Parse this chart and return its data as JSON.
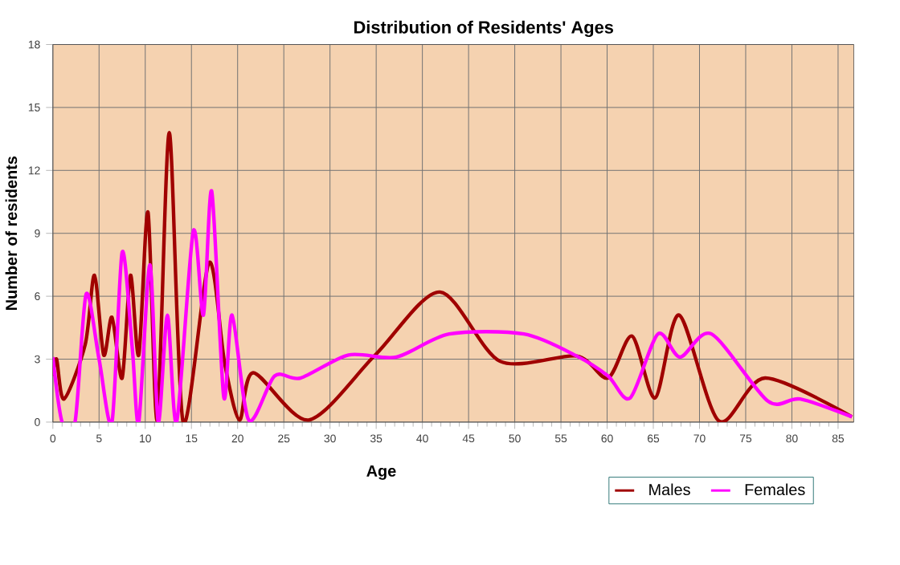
{
  "chart_data": {
    "type": "line",
    "title": "Distribution of Residents' Ages",
    "xlabel": "Age",
    "ylabel": "Number of residents",
    "xlim": [
      0,
      86.7
    ],
    "xticks": [
      0,
      5,
      10,
      15,
      20,
      25,
      30,
      35,
      40,
      45,
      50,
      55,
      60,
      65,
      70,
      75,
      80,
      85
    ],
    "ylim": [
      0,
      18
    ],
    "yticks": [
      0,
      3,
      6,
      9,
      12,
      15,
      18
    ],
    "grid": true,
    "legend": "bottom right",
    "series": [
      {
        "name": "Males",
        "color": "#a00000",
        "x": [
          0,
          0.4,
          1.2,
          3.5,
          4.5,
          5.5,
          6.4,
          7.5,
          8.4,
          9.3,
          10.3,
          11.3,
          12.6,
          14.1,
          16.9,
          18.6,
          20.2,
          21.7,
          27.7,
          34.9,
          41.9,
          48.4,
          56.7,
          60.1,
          62.7,
          65.2,
          67.8,
          72.1,
          77.1,
          86.5
        ],
        "values": [
          2.2,
          3.0,
          1.1,
          3.7,
          7.0,
          3.2,
          5.0,
          2.1,
          7.0,
          3.2,
          10.0,
          0.1,
          13.8,
          0,
          7.6,
          2.8,
          0.1,
          2.35,
          0.1,
          3.2,
          6.2,
          2.9,
          3.15,
          2.1,
          4.1,
          1.15,
          5.1,
          0.05,
          2.1,
          0.25
        ]
      },
      {
        "name": "Females",
        "color": "#ff00ff",
        "x": [
          0,
          1,
          2.4,
          3.6,
          5.0,
          6.4,
          7.5,
          8.6,
          9.3,
          10.5,
          11.4,
          12.4,
          13.4,
          15.2,
          16.3,
          17.2,
          18.5,
          19.4,
          21.2,
          24.0,
          26.8,
          32.0,
          37.2,
          42.9,
          51.0,
          56.7,
          60.1,
          62.5,
          65.5,
          67.9,
          71.3,
          77.4,
          80.9,
          86.5
        ],
        "values": [
          3.1,
          0,
          0,
          6.1,
          3.0,
          0,
          8.1,
          3.5,
          0,
          7.5,
          0,
          5.1,
          0,
          9.1,
          5.1,
          11.0,
          1.2,
          5.1,
          0.1,
          2.2,
          2.1,
          3.2,
          3.1,
          4.2,
          4.2,
          3.15,
          2.2,
          1.15,
          4.2,
          3.1,
          4.2,
          1.0,
          1.1,
          0.25
        ]
      }
    ]
  }
}
